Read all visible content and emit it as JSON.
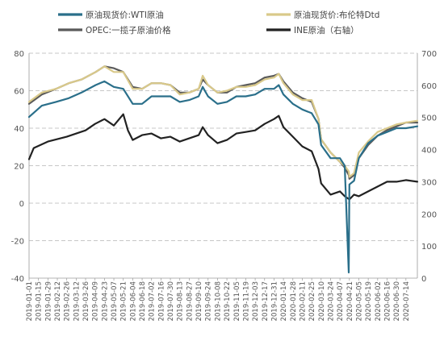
{
  "chart_data": {
    "type": "line",
    "title": "",
    "xlabel": "",
    "ylabel_left": "",
    "ylabel_right": "",
    "ylim_left": [
      -40,
      80
    ],
    "ylim_right": [
      0,
      700
    ],
    "yticks_left": [
      "-40",
      "-20",
      "0",
      "20",
      "40",
      "60",
      "80"
    ],
    "yticks_right": [
      "0",
      "100",
      "200",
      "300",
      "400",
      "500",
      "600",
      "700"
    ],
    "grid": "horizontal-dashed",
    "legend_position": "top",
    "x_range": [
      "2019-01-01",
      "2020-07-31"
    ],
    "x_tick_labels": [
      "2019-01-01",
      "2019-01-15",
      "2019-01-29",
      "2019-02-12",
      "2019-02-26",
      "2019-03-12",
      "2019-03-26",
      "2019-04-09",
      "2019-04-23",
      "2019-05-07",
      "2019-05-21",
      "2019-06-04",
      "2019-06-18",
      "2019-07-02",
      "2019-07-16",
      "2019-07-30",
      "2019-08-13",
      "2019-08-27",
      "2019-09-10",
      "2019-09-24",
      "2019-10-08",
      "2019-10-22",
      "2019-11-05",
      "2019-11-19",
      "2019-12-03",
      "2019-12-17",
      "2019-12-31",
      "2020-01-14",
      "2020-01-28",
      "2020-02-11",
      "2020-02-25",
      "2020-03-10",
      "2020-03-24",
      "2020-04-07",
      "2020-04-21",
      "2020-05-05",
      "2020-05-19",
      "2020-06-02",
      "2020-06-16",
      "2020-06-30",
      "2020-07-14"
    ],
    "series": [
      {
        "name": "原油现货价:WTI原油",
        "axis": "left",
        "color": "#2a6f8a",
        "points": [
          [
            "2019-01-01",
            46
          ],
          [
            "2019-01-20",
            52
          ],
          [
            "2019-02-10",
            54
          ],
          [
            "2019-03-01",
            56
          ],
          [
            "2019-03-20",
            59
          ],
          [
            "2019-04-10",
            63
          ],
          [
            "2019-04-23",
            65
          ],
          [
            "2019-05-07",
            62
          ],
          [
            "2019-05-21",
            61
          ],
          [
            "2019-06-04",
            53
          ],
          [
            "2019-06-18",
            53
          ],
          [
            "2019-07-02",
            57
          ],
          [
            "2019-07-16",
            57
          ],
          [
            "2019-07-30",
            57
          ],
          [
            "2019-08-13",
            54
          ],
          [
            "2019-08-27",
            55
          ],
          [
            "2019-09-10",
            57
          ],
          [
            "2019-09-16",
            62
          ],
          [
            "2019-09-24",
            57
          ],
          [
            "2019-10-08",
            53
          ],
          [
            "2019-10-22",
            54
          ],
          [
            "2019-11-05",
            57
          ],
          [
            "2019-11-19",
            57
          ],
          [
            "2019-12-03",
            58
          ],
          [
            "2019-12-17",
            61
          ],
          [
            "2019-12-31",
            61
          ],
          [
            "2020-01-07",
            63
          ],
          [
            "2020-01-14",
            58
          ],
          [
            "2020-01-28",
            53
          ],
          [
            "2020-02-11",
            50
          ],
          [
            "2020-02-25",
            48
          ],
          [
            "2020-03-06",
            42
          ],
          [
            "2020-03-10",
            31
          ],
          [
            "2020-03-24",
            24
          ],
          [
            "2020-04-07",
            24
          ],
          [
            "2020-04-14",
            20
          ],
          [
            "2020-04-20",
            -37
          ],
          [
            "2020-04-21",
            10
          ],
          [
            "2020-04-28",
            12
          ],
          [
            "2020-05-05",
            24
          ],
          [
            "2020-05-19",
            32
          ],
          [
            "2020-06-02",
            36
          ],
          [
            "2020-06-16",
            38
          ],
          [
            "2020-06-30",
            40
          ],
          [
            "2020-07-14",
            40
          ],
          [
            "2020-07-31",
            41
          ]
        ]
      },
      {
        "name": "原油现货价:布伦特Dtd",
        "axis": "left",
        "color": "#d9c98a",
        "points": [
          [
            "2019-01-01",
            54
          ],
          [
            "2019-01-20",
            59
          ],
          [
            "2019-02-10",
            61
          ],
          [
            "2019-03-01",
            64
          ],
          [
            "2019-03-20",
            66
          ],
          [
            "2019-04-10",
            70
          ],
          [
            "2019-04-23",
            73
          ],
          [
            "2019-05-07",
            70
          ],
          [
            "2019-05-21",
            70
          ],
          [
            "2019-06-04",
            61
          ],
          [
            "2019-06-18",
            61
          ],
          [
            "2019-07-02",
            64
          ],
          [
            "2019-07-16",
            64
          ],
          [
            "2019-07-30",
            63
          ],
          [
            "2019-08-13",
            58
          ],
          [
            "2019-08-27",
            59
          ],
          [
            "2019-09-10",
            61
          ],
          [
            "2019-09-16",
            68
          ],
          [
            "2019-09-24",
            63
          ],
          [
            "2019-10-08",
            59
          ],
          [
            "2019-10-22",
            60
          ],
          [
            "2019-11-05",
            62
          ],
          [
            "2019-11-19",
            62
          ],
          [
            "2019-12-03",
            63
          ],
          [
            "2019-12-17",
            66
          ],
          [
            "2019-12-31",
            67
          ],
          [
            "2020-01-07",
            69
          ],
          [
            "2020-01-14",
            64
          ],
          [
            "2020-01-28",
            58
          ],
          [
            "2020-02-11",
            55
          ],
          [
            "2020-02-25",
            55
          ],
          [
            "2020-03-06",
            45
          ],
          [
            "2020-03-10",
            34
          ],
          [
            "2020-03-24",
            27
          ],
          [
            "2020-04-07",
            22
          ],
          [
            "2020-04-14",
            20
          ],
          [
            "2020-04-20",
            17
          ],
          [
            "2020-04-21",
            14
          ],
          [
            "2020-04-28",
            16
          ],
          [
            "2020-05-05",
            27
          ],
          [
            "2020-05-19",
            33
          ],
          [
            "2020-06-02",
            38
          ],
          [
            "2020-06-16",
            40
          ],
          [
            "2020-06-30",
            42
          ],
          [
            "2020-07-14",
            43
          ],
          [
            "2020-07-31",
            44
          ]
        ]
      },
      {
        "name": "OPEC:一揽子原油价格",
        "axis": "left",
        "color": "#5a5a5a",
        "points": [
          [
            "2019-01-01",
            53
          ],
          [
            "2019-01-20",
            58
          ],
          [
            "2019-02-10",
            61
          ],
          [
            "2019-03-01",
            64
          ],
          [
            "2019-03-20",
            66
          ],
          [
            "2019-04-10",
            70
          ],
          [
            "2019-04-23",
            73
          ],
          [
            "2019-05-07",
            72
          ],
          [
            "2019-05-21",
            70
          ],
          [
            "2019-06-04",
            62
          ],
          [
            "2019-06-18",
            61
          ],
          [
            "2019-07-02",
            64
          ],
          [
            "2019-07-16",
            64
          ],
          [
            "2019-07-30",
            63
          ],
          [
            "2019-08-13",
            59
          ],
          [
            "2019-08-27",
            59
          ],
          [
            "2019-09-10",
            61
          ],
          [
            "2019-09-16",
            66
          ],
          [
            "2019-09-24",
            63
          ],
          [
            "2019-10-08",
            59
          ],
          [
            "2019-10-22",
            59
          ],
          [
            "2019-11-05",
            62
          ],
          [
            "2019-11-19",
            63
          ],
          [
            "2019-12-03",
            64
          ],
          [
            "2019-12-17",
            67
          ],
          [
            "2019-12-31",
            68
          ],
          [
            "2020-01-07",
            69
          ],
          [
            "2020-01-14",
            65
          ],
          [
            "2020-01-28",
            59
          ],
          [
            "2020-02-11",
            56
          ],
          [
            "2020-02-25",
            54
          ],
          [
            "2020-03-06",
            45
          ],
          [
            "2020-03-10",
            34
          ],
          [
            "2020-03-24",
            27
          ],
          [
            "2020-04-07",
            22
          ],
          [
            "2020-04-14",
            19
          ],
          [
            "2020-04-20",
            15
          ],
          [
            "2020-04-21",
            13
          ],
          [
            "2020-04-28",
            15
          ],
          [
            "2020-05-05",
            24
          ],
          [
            "2020-05-19",
            31
          ],
          [
            "2020-06-02",
            36
          ],
          [
            "2020-06-16",
            39
          ],
          [
            "2020-06-30",
            41
          ],
          [
            "2020-07-14",
            43
          ],
          [
            "2020-07-31",
            43
          ]
        ]
      },
      {
        "name": "INE原油（右轴）",
        "axis": "right",
        "color": "#222222",
        "points": [
          [
            "2019-01-01",
            370
          ],
          [
            "2019-01-08",
            405
          ],
          [
            "2019-01-29",
            425
          ],
          [
            "2019-02-26",
            440
          ],
          [
            "2019-03-26",
            460
          ],
          [
            "2019-04-09",
            480
          ],
          [
            "2019-04-23",
            495
          ],
          [
            "2019-05-07",
            475
          ],
          [
            "2019-05-21",
            510
          ],
          [
            "2019-05-28",
            460
          ],
          [
            "2019-06-04",
            430
          ],
          [
            "2019-06-18",
            445
          ],
          [
            "2019-07-02",
            450
          ],
          [
            "2019-07-16",
            435
          ],
          [
            "2019-07-30",
            440
          ],
          [
            "2019-08-13",
            425
          ],
          [
            "2019-08-27",
            435
          ],
          [
            "2019-09-10",
            445
          ],
          [
            "2019-09-16",
            470
          ],
          [
            "2019-09-24",
            445
          ],
          [
            "2019-10-08",
            420
          ],
          [
            "2019-10-22",
            430
          ],
          [
            "2019-11-05",
            450
          ],
          [
            "2019-11-19",
            455
          ],
          [
            "2019-12-03",
            460
          ],
          [
            "2019-12-17",
            480
          ],
          [
            "2019-12-31",
            495
          ],
          [
            "2020-01-07",
            505
          ],
          [
            "2020-01-14",
            470
          ],
          [
            "2020-01-28",
            440
          ],
          [
            "2020-02-11",
            410
          ],
          [
            "2020-02-25",
            395
          ],
          [
            "2020-03-06",
            340
          ],
          [
            "2020-03-10",
            295
          ],
          [
            "2020-03-24",
            260
          ],
          [
            "2020-04-07",
            270
          ],
          [
            "2020-04-14",
            255
          ],
          [
            "2020-04-21",
            245
          ],
          [
            "2020-04-28",
            260
          ],
          [
            "2020-05-05",
            255
          ],
          [
            "2020-05-19",
            270
          ],
          [
            "2020-06-02",
            285
          ],
          [
            "2020-06-16",
            300
          ],
          [
            "2020-06-30",
            300
          ],
          [
            "2020-07-14",
            305
          ],
          [
            "2020-07-31",
            300
          ]
        ]
      }
    ]
  }
}
